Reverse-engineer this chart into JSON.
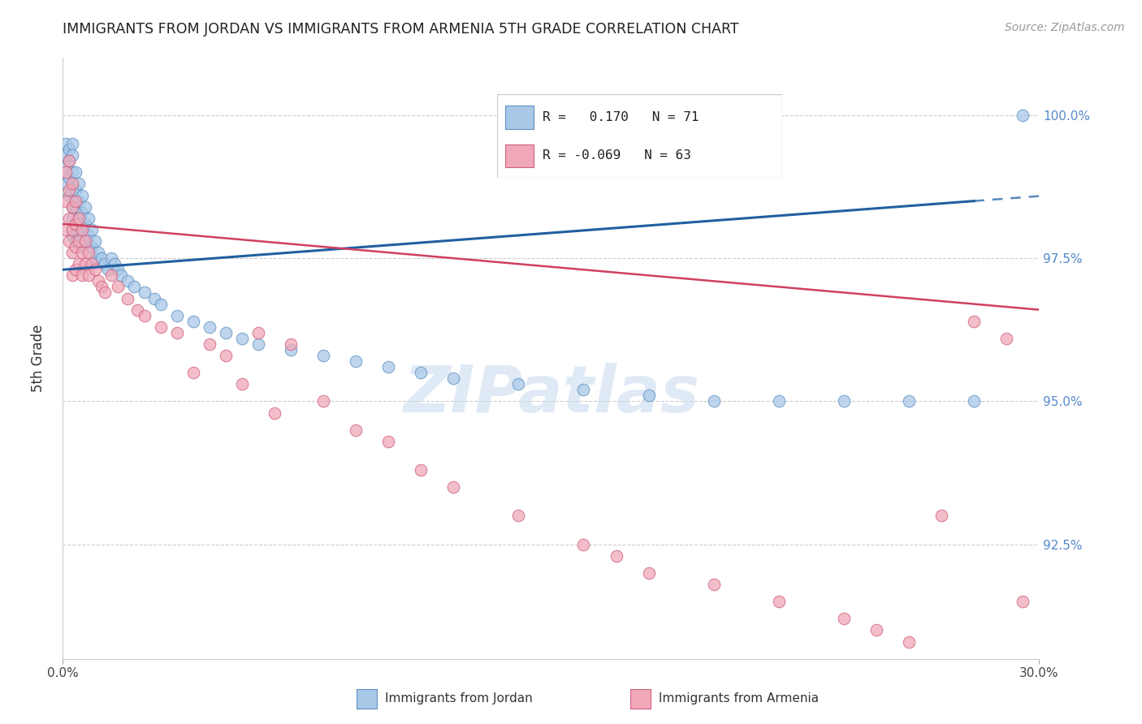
{
  "title": "IMMIGRANTS FROM JORDAN VS IMMIGRANTS FROM ARMENIA 5TH GRADE CORRELATION CHART",
  "source": "Source: ZipAtlas.com",
  "ylabel": "5th Grade",
  "x_min": 0.0,
  "x_max": 30.0,
  "y_min": 90.5,
  "y_max": 101.0,
  "jordan_R": 0.17,
  "jordan_N": 71,
  "armenia_R": -0.069,
  "armenia_N": 63,
  "jordan_color": "#a8c8e8",
  "armenia_color": "#f0a8b8",
  "jordan_edge_color": "#6090c0",
  "armenia_edge_color": "#d06080",
  "jordan_line_color": "#2060a0",
  "armenia_line_color": "#d04060",
  "watermark_text": "ZIPatlas",
  "watermark_color": "#ccddf0",
  "right_yticks": [
    92.5,
    95.0,
    97.5,
    100.0
  ],
  "right_yticklabels": [
    "92.5%",
    "95.0%",
    "97.5%",
    "100.0%"
  ],
  "legend_jordan_text": "R =   0.170   N = 71",
  "legend_armenia_text": "R = -0.069   N = 63",
  "jordan_x": [
    0.1,
    0.1,
    0.1,
    0.1,
    0.2,
    0.2,
    0.2,
    0.2,
    0.3,
    0.3,
    0.3,
    0.3,
    0.3,
    0.3,
    0.3,
    0.4,
    0.4,
    0.4,
    0.4,
    0.4,
    0.5,
    0.5,
    0.5,
    0.5,
    0.6,
    0.6,
    0.6,
    0.6,
    0.7,
    0.7,
    0.7,
    0.8,
    0.8,
    0.9,
    0.9,
    1.0,
    1.0,
    1.1,
    1.2,
    1.3,
    1.4,
    1.5,
    1.6,
    1.7,
    1.8,
    2.0,
    2.2,
    2.5,
    2.8,
    3.0,
    3.5,
    4.0,
    4.5,
    5.0,
    5.5,
    6.0,
    7.0,
    8.0,
    9.0,
    10.0,
    11.0,
    12.0,
    14.0,
    16.0,
    18.0,
    20.0,
    22.0,
    24.0,
    26.0,
    28.0,
    29.5
  ],
  "jordan_y": [
    99.5,
    99.3,
    99.1,
    98.8,
    99.4,
    99.2,
    98.9,
    98.6,
    99.5,
    99.3,
    99.0,
    98.7,
    98.4,
    98.2,
    97.9,
    99.0,
    98.7,
    98.4,
    98.1,
    97.8,
    98.8,
    98.5,
    98.2,
    97.9,
    98.6,
    98.3,
    98.0,
    97.7,
    98.4,
    98.1,
    97.8,
    98.2,
    97.9,
    98.0,
    97.7,
    97.8,
    97.5,
    97.6,
    97.5,
    97.4,
    97.3,
    97.5,
    97.4,
    97.3,
    97.2,
    97.1,
    97.0,
    96.9,
    96.8,
    96.7,
    96.5,
    96.4,
    96.3,
    96.2,
    96.1,
    96.0,
    95.9,
    95.8,
    95.7,
    95.6,
    95.5,
    95.4,
    95.3,
    95.2,
    95.1,
    95.0,
    95.0,
    95.0,
    95.0,
    95.0,
    100.0
  ],
  "armenia_x": [
    0.1,
    0.1,
    0.1,
    0.2,
    0.2,
    0.2,
    0.2,
    0.3,
    0.3,
    0.3,
    0.3,
    0.3,
    0.4,
    0.4,
    0.4,
    0.4,
    0.5,
    0.5,
    0.5,
    0.6,
    0.6,
    0.6,
    0.7,
    0.7,
    0.8,
    0.8,
    0.9,
    1.0,
    1.1,
    1.2,
    1.3,
    1.5,
    1.7,
    2.0,
    2.3,
    2.5,
    3.0,
    3.5,
    4.0,
    4.5,
    5.0,
    5.5,
    6.0,
    7.0,
    8.0,
    9.0,
    10.0,
    11.0,
    12.0,
    14.0,
    16.0,
    18.0,
    20.0,
    22.0,
    24.0,
    25.0,
    26.0,
    27.0,
    28.0,
    29.0,
    29.5,
    6.5,
    17.0
  ],
  "armenia_y": [
    99.0,
    98.5,
    98.0,
    99.2,
    98.7,
    98.2,
    97.8,
    98.8,
    98.4,
    98.0,
    97.6,
    97.2,
    98.5,
    98.1,
    97.7,
    97.3,
    98.2,
    97.8,
    97.4,
    98.0,
    97.6,
    97.2,
    97.8,
    97.4,
    97.6,
    97.2,
    97.4,
    97.3,
    97.1,
    97.0,
    96.9,
    97.2,
    97.0,
    96.8,
    96.6,
    96.5,
    96.3,
    96.2,
    95.5,
    96.0,
    95.8,
    95.3,
    96.2,
    96.0,
    95.0,
    94.5,
    94.3,
    93.8,
    93.5,
    93.0,
    92.5,
    92.0,
    91.8,
    91.5,
    91.2,
    91.0,
    90.8,
    93.0,
    96.4,
    96.1,
    91.5,
    94.8,
    92.3
  ]
}
